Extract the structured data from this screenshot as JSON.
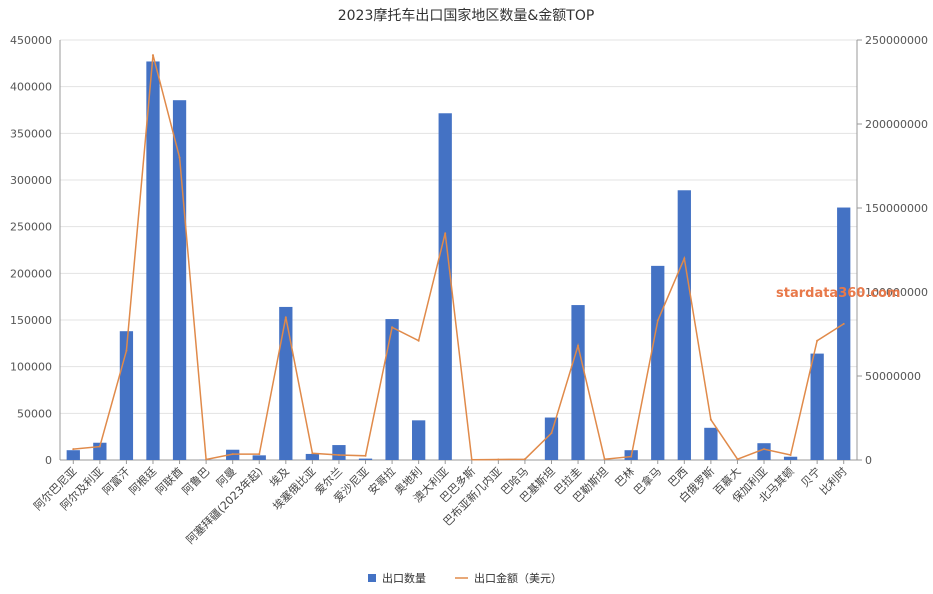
{
  "chart_data": {
    "type": "bar",
    "title": "2023摩托车出口国家地区数量&金额TOP",
    "categories": [
      "阿尔巴尼亚",
      "阿尔及利亚",
      "阿富汗",
      "阿根廷",
      "阿联酋",
      "阿鲁巴",
      "阿曼",
      "阿塞拜疆(2023年起)",
      "埃及",
      "埃塞俄比亚",
      "爱尔兰",
      "爱沙尼亚",
      "安哥拉",
      "奥地利",
      "澳大利亚",
      "巴巴多斯",
      "巴布亚新几内亚",
      "巴哈马",
      "巴基斯坦",
      "巴拉圭",
      "巴勒斯坦",
      "巴林",
      "巴拿马",
      "巴西",
      "白俄罗斯",
      "百慕大",
      "保加利亚",
      "北马其顿",
      "贝宁",
      "比利时"
    ],
    "series": [
      {
        "name": "出口数量",
        "type": "bar",
        "axis": "left",
        "color": "#4472C4",
        "values": [
          10500,
          18500,
          138000,
          427000,
          385500,
          200,
          11000,
          5000,
          164000,
          6500,
          16000,
          1500,
          151000,
          42500,
          371500,
          0,
          0,
          0,
          45500,
          166000,
          0,
          10500,
          208000,
          289000,
          34500,
          100,
          18000,
          3500,
          114000,
          270500
        ]
      },
      {
        "name": "出口金额（美元）",
        "type": "line",
        "axis": "right",
        "color": "#E08A4A",
        "values": [
          6500000,
          8000000,
          65000000,
          241000000,
          180000000,
          300000,
          3500000,
          3500000,
          85000000,
          4000000,
          3000000,
          2500000,
          79000000,
          71000000,
          135000000,
          200000,
          300000,
          500000,
          16000000,
          68000000,
          500000,
          2000000,
          83000000,
          120000000,
          24000000,
          500000,
          6500000,
          3000000,
          71000000,
          81000000
        ]
      }
    ],
    "y_left": {
      "min": 0,
      "max": 450000,
      "ticks": [
        "0",
        "50000",
        "100000",
        "150000",
        "200000",
        "250000",
        "300000",
        "350000",
        "400000",
        "450000"
      ]
    },
    "y_right": {
      "min": 0,
      "max": 250000000,
      "ticks": [
        "0",
        "50000000",
        "100000000",
        "150000000",
        "200000000",
        "250000000"
      ]
    },
    "grid": true,
    "legend": "bottom-center",
    "watermark": "stardata360.com",
    "watermark_color": "#E8794A"
  }
}
